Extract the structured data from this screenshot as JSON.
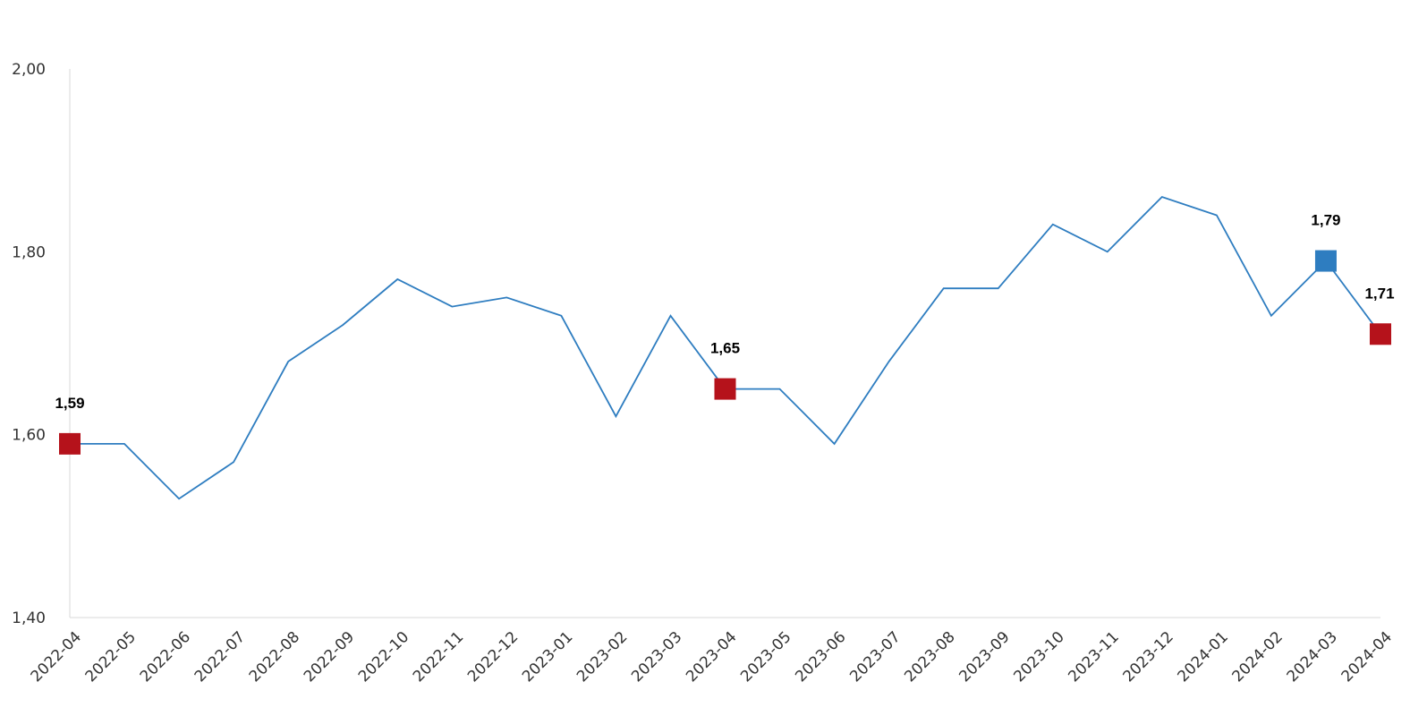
{
  "chart_data": {
    "type": "line",
    "title": "",
    "xlabel": "",
    "ylabel": "",
    "ylim": [
      1.4,
      2.0
    ],
    "y_ticks": [
      "1,40",
      "1,60",
      "1,80",
      "2,00"
    ],
    "y_tick_values": [
      1.4,
      1.6,
      1.8,
      2.0
    ],
    "grid": false,
    "legend": "none",
    "categories": [
      "2022-04",
      "2022-05",
      "2022-06",
      "2022-07",
      "2022-08",
      "2022-09",
      "2022-10",
      "2022-11",
      "2022-12",
      "2023-01",
      "2023-02",
      "2023-03",
      "2023-04",
      "2023-05",
      "2023-06",
      "2023-07",
      "2023-08",
      "2023-09",
      "2023-10",
      "2023-11",
      "2023-12",
      "2024-01",
      "2024-02",
      "2024-03",
      "2024-04"
    ],
    "series": [
      {
        "values": [
          1.59,
          1.59,
          1.53,
          1.57,
          1.68,
          1.72,
          1.77,
          1.74,
          1.75,
          1.73,
          1.62,
          1.73,
          1.65,
          1.65,
          1.59,
          1.68,
          1.76,
          1.76,
          1.83,
          1.8,
          1.86,
          1.84,
          1.73,
          1.79,
          1.71
        ],
        "color": "#2e7dc0"
      }
    ],
    "highlighted_points": [
      {
        "category": "2022-04",
        "value": 1.59,
        "label": "1,59",
        "color": "#b5121b"
      },
      {
        "category": "2023-04",
        "value": 1.65,
        "label": "1,65",
        "color": "#b5121b"
      },
      {
        "category": "2024-03",
        "value": 1.79,
        "label": "1,79",
        "color": "#2e7dc0"
      },
      {
        "category": "2024-04",
        "value": 1.71,
        "label": "1,71",
        "color": "#b5121b"
      }
    ],
    "colors": {
      "line": "#2e7dc0",
      "axis": "#d9d9d9"
    }
  }
}
